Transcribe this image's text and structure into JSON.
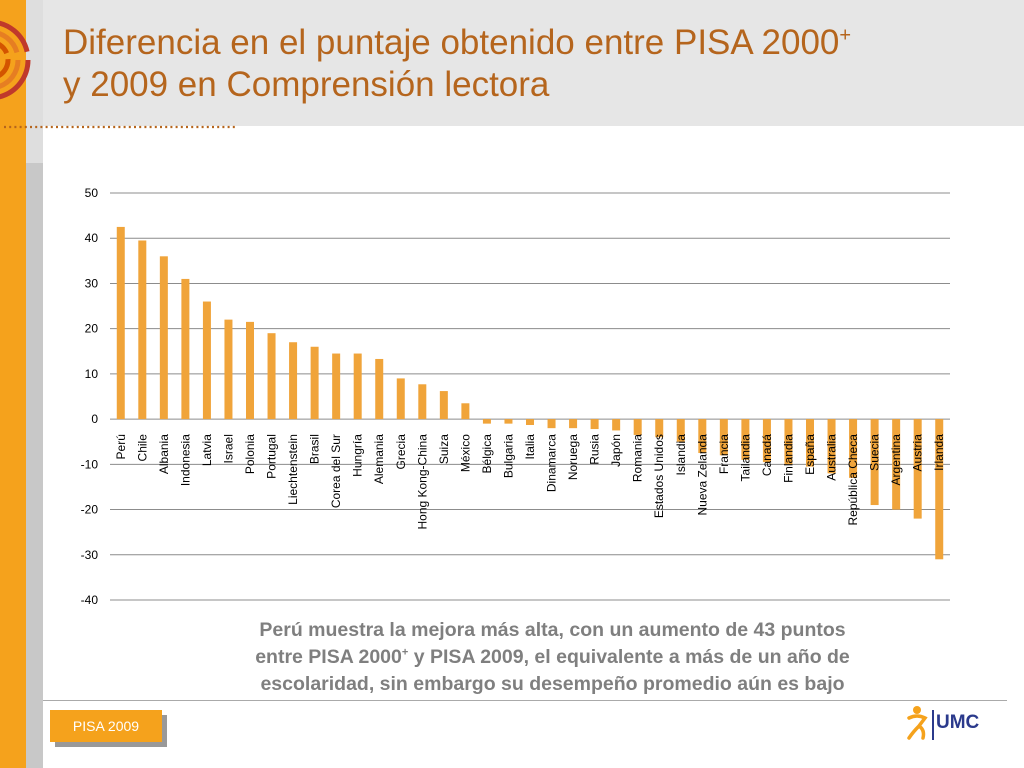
{
  "header": {
    "title_line1": "Diferencia en el puntaje obtenido entre PISA 2000",
    "title_sup": "+",
    "title_line2": "y 2009 en Comprensión lectora"
  },
  "caption": {
    "line1": "Perú muestra la mejora más alta, con un aumento de 43 puntos",
    "line2_a": "entre PISA 2000",
    "line2_sup": "+",
    "line2_b": " y PISA 2009, el equivalente a más de un año de",
    "line3": "escolaridad, sin embargo su desempeño promedio aún es bajo"
  },
  "footer": {
    "badge": "PISA 2009",
    "logo_text": "UMC"
  },
  "colors": {
    "accent": "#f5a21c",
    "title": "#b5651d",
    "bar": "#f0a43a",
    "caption": "#7f7f7f",
    "logo": "#2b3a8c"
  },
  "chart_data": {
    "type": "bar",
    "categories": [
      "Perú",
      "Chile",
      "Albania",
      "Indonesia",
      "Latvia",
      "Israel",
      "Polonia",
      "Portugal",
      "Liechtenstein",
      "Brasil",
      "Corea del Sur",
      "Hungría",
      "Alemania",
      "Grecia",
      "Hong Kong-China",
      "Suiza",
      "México",
      "Bélgica",
      "Bulgaria",
      "Italia",
      "Dinamarca",
      "Noruega",
      "Rusia",
      "Japón",
      "Romania",
      "Estados Unidos",
      "Islandia",
      "Nueva Zelanda",
      "Francia",
      "Tailandia",
      "Canadá",
      "Finlandia",
      "España",
      "Australia",
      "República Checa",
      "Suecia",
      "Argentina",
      "Austria",
      "Irlanda"
    ],
    "values": [
      42.5,
      39.5,
      36,
      31,
      26,
      22,
      21.5,
      19,
      17,
      16,
      14.5,
      14.5,
      13.3,
      9,
      7.7,
      6.2,
      3.5,
      -1,
      -1,
      -1.3,
      -2,
      -2,
      -2.2,
      -2.5,
      -3.5,
      -4,
      -5,
      -7.5,
      -8,
      -9,
      -9.5,
      -10,
      -10.5,
      -12,
      -13,
      -19,
      -20,
      -22,
      -31
    ],
    "yticks": [
      "50",
      "40",
      "30",
      "20",
      "10",
      "0",
      "-10",
      "-20",
      "-30",
      "-40"
    ],
    "ylim": [
      -40,
      50
    ],
    "grid": true
  }
}
